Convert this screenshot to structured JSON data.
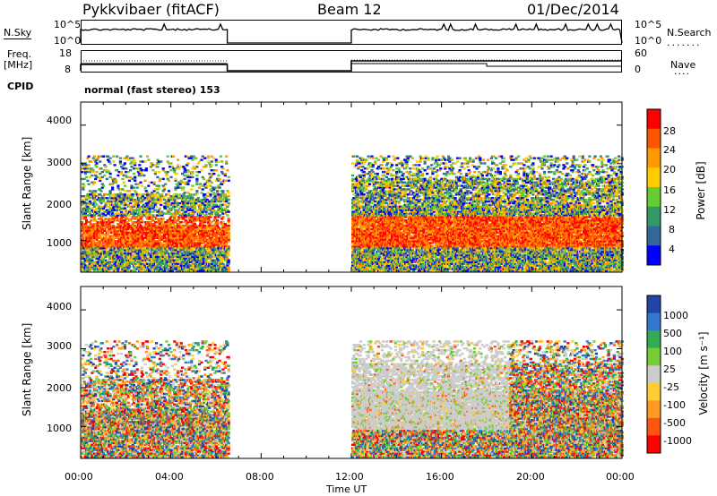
{
  "header": {
    "radar": "Pykkvibaer (fitACF)",
    "beam": "Beam 12",
    "date": "01/Dec/2014"
  },
  "top_panels": {
    "nsky_label": "N.Sky",
    "nsearch_label": "N.Search",
    "noise_ticks": [
      "10^5",
      "10^0"
    ],
    "freq_label_1": "Freq.",
    "freq_label_2": "[MHz]",
    "freq_ticks": [
      "18",
      "8"
    ],
    "nave_label": "Nave",
    "nave_ticks": [
      "60",
      "0"
    ],
    "cpid_label": "CPID",
    "cpid_value": "normal (fast stereo) 153"
  },
  "chart_data": [
    {
      "type": "heatmap",
      "title": "Power",
      "ylabel": "Slant Range [km]",
      "ylim": [
        180,
        4600
      ],
      "yticks": [
        "4000",
        "3000",
        "2000",
        "1000"
      ],
      "xlim": [
        0,
        24
      ],
      "xticks": [
        "00:00",
        "04:00",
        "08:00",
        "12:00",
        "16:00",
        "20:00",
        "00:00"
      ],
      "colorbar": {
        "label": "Power [dB]",
        "ticks": [
          "28",
          "24",
          "20",
          "16",
          "12",
          "8",
          "4"
        ],
        "colors": [
          "#ff0000",
          "#ff5500",
          "#ff9900",
          "#ffcc00",
          "#66cc33",
          "#339966",
          "#336699",
          "#0000ff"
        ]
      },
      "data_segments_hours": [
        [
          0,
          6.5
        ],
        [
          12,
          24
        ]
      ]
    },
    {
      "type": "heatmap",
      "title": "Velocity",
      "ylabel": "Slant Range [km]",
      "ylim": [
        180,
        4600
      ],
      "yticks": [
        "4000",
        "3000",
        "2000",
        "1000"
      ],
      "xlim": [
        0,
        24
      ],
      "xticks": [
        "00:00",
        "04:00",
        "08:00",
        "12:00",
        "16:00",
        "20:00",
        "00:00"
      ],
      "xlabel": "Time UT",
      "colorbar": {
        "label": "Velocity [m s⁻¹]",
        "ticks": [
          "1000",
          "500",
          "100",
          "25",
          "-25",
          "-100",
          "-500",
          "-1000"
        ],
        "colors": [
          "#2244aa",
          "#3377cc",
          "#33aa55",
          "#77cc33",
          "#cccccc",
          "#ffcc33",
          "#ff9922",
          "#ff5511",
          "#ff0000"
        ]
      },
      "data_segments_hours": [
        [
          0,
          6.5
        ],
        [
          12,
          24
        ]
      ]
    }
  ]
}
